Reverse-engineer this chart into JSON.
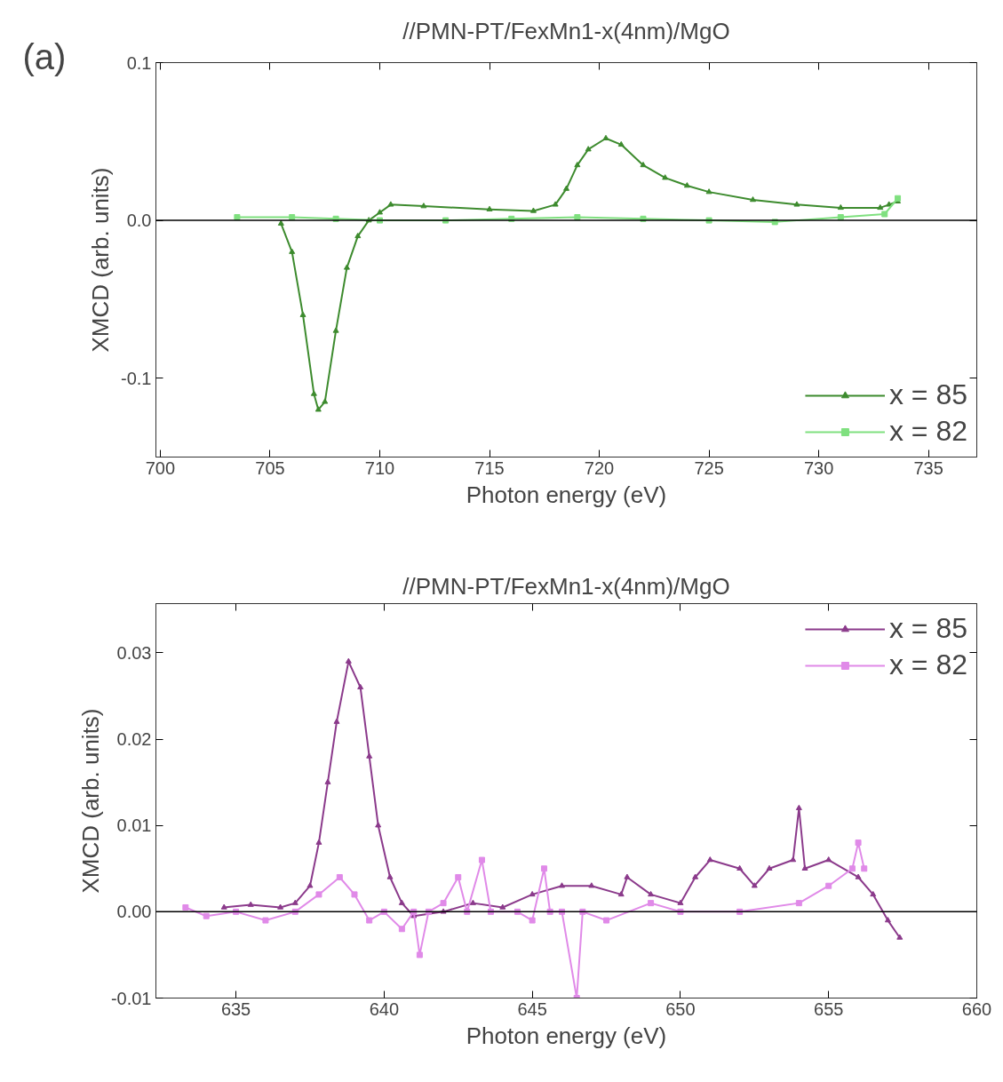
{
  "chart_data": [
    {
      "type": "line",
      "title": "//PMN-PT/FexMn1-x(4nm)/MgO",
      "xlabel": "Photon energy (eV)",
      "ylabel": "XMCD (arb. units)",
      "annotations": [
        "(a)"
      ],
      "xlim": [
        699.8,
        737.2
      ],
      "ylim": [
        -0.15,
        0.1
      ],
      "xticks": [
        700,
        705,
        710,
        715,
        720,
        725,
        730,
        735
      ],
      "yticks": [
        {
          "value": -0.1,
          "label": "-0.1"
        },
        {
          "value": 0,
          "label": "0.0"
        },
        0.1
      ],
      "grid": false,
      "legend": "bottom right",
      "line_style": "solid",
      "ref_lines": [
        {
          "axis": "y",
          "value": 0,
          "color": "#000000"
        }
      ],
      "series": [
        {
          "name": "x = 85",
          "color": "#3d8b2e",
          "marker": "triangle",
          "x": [
            705.5,
            706,
            706.5,
            707,
            707.2,
            707.5,
            708,
            708.5,
            709,
            709.5,
            710,
            710.5,
            712,
            715,
            717,
            718,
            718.5,
            719,
            719.5,
            720.3,
            721,
            722,
            723,
            724,
            725,
            727,
            729,
            731,
            732.8,
            733.2,
            733.6
          ],
          "values": [
            -0.002,
            -0.02,
            -0.06,
            -0.11,
            -0.12,
            -0.115,
            -0.07,
            -0.03,
            -0.01,
            0.0,
            0.005,
            0.01,
            0.009,
            0.007,
            0.006,
            0.01,
            0.02,
            0.035,
            0.045,
            0.052,
            0.048,
            0.035,
            0.027,
            0.022,
            0.018,
            0.013,
            0.01,
            0.008,
            0.008,
            0.01,
            0.012
          ]
        },
        {
          "name": "x = 82",
          "color": "#7fe07f",
          "marker": "square",
          "x": [
            703.5,
            706,
            708,
            710,
            713,
            716,
            719,
            722,
            725,
            728,
            731,
            733,
            733.6
          ],
          "values": [
            0.002,
            0.002,
            0.001,
            0.0,
            0.0,
            0.001,
            0.002,
            0.001,
            0.0,
            -0.001,
            0.002,
            0.004,
            0.014
          ]
        }
      ]
    },
    {
      "type": "line",
      "title": "//PMN-PT/FexMn1-x(4nm)/MgO",
      "xlabel": "Photon energy (eV)",
      "ylabel": "XMCD (arb. units)",
      "xlim": [
        632.3,
        660
      ],
      "ylim": [
        -0.01,
        0.0357
      ],
      "xticks": [
        635,
        640,
        645,
        650,
        655,
        660
      ],
      "yticks": [
        {
          "value": -0.01,
          "label": "-0.01"
        },
        {
          "value": 0,
          "label": "0.00"
        },
        0.01,
        0.02,
        0.03
      ],
      "grid": false,
      "legend": "top right",
      "line_style": "solid",
      "ref_lines": [
        {
          "axis": "y",
          "value": 0,
          "color": "#000000"
        }
      ],
      "series": [
        {
          "name": "x = 85",
          "color": "#8b3a8b",
          "marker": "triangle",
          "x": [
            634.6,
            635.5,
            636.5,
            637,
            637.5,
            637.8,
            638.1,
            638.4,
            638.8,
            639.2,
            639.5,
            639.8,
            640.2,
            640.6,
            641,
            642,
            643,
            644,
            645,
            646,
            647,
            648,
            648.2,
            649,
            650,
            650.5,
            651,
            652,
            652.5,
            653,
            653.8,
            654,
            654.2,
            655,
            656,
            656.5,
            657,
            657.4
          ],
          "values": [
            0.0005,
            0.0008,
            0.0005,
            0.001,
            0.003,
            0.008,
            0.015,
            0.022,
            0.029,
            0.026,
            0.018,
            0.01,
            0.004,
            0.001,
            -0.0005,
            0.0,
            0.001,
            0.0005,
            0.002,
            0.003,
            0.003,
            0.002,
            0.004,
            0.002,
            0.001,
            0.004,
            0.006,
            0.005,
            0.003,
            0.005,
            0.006,
            0.012,
            0.005,
            0.006,
            0.004,
            0.002,
            -0.001,
            -0.003
          ]
        },
        {
          "name": "x = 82",
          "color": "#e08ae8",
          "marker": "square",
          "x": [
            633.3,
            634,
            635,
            636,
            637,
            637.8,
            638.5,
            639,
            639.5,
            640,
            640.6,
            641,
            641.2,
            641.5,
            642,
            642.5,
            642.8,
            643.3,
            643.6,
            644.5,
            645,
            645.4,
            645.6,
            646,
            646.5,
            646.7,
            647.5,
            649,
            650,
            652,
            654,
            655,
            655.8,
            656,
            656.2
          ],
          "values": [
            0.0005,
            -0.0005,
            0.0,
            -0.001,
            0.0,
            0.002,
            0.004,
            0.002,
            -0.001,
            0.0,
            -0.002,
            0.0,
            -0.005,
            0.0,
            0.001,
            0.004,
            0.0,
            0.006,
            0.0,
            0.0,
            -0.001,
            0.005,
            0.0,
            0.0,
            -0.01,
            0.0,
            -0.001,
            0.001,
            0.0,
            0.0,
            0.001,
            0.003,
            0.005,
            0.008,
            0.005
          ]
        }
      ]
    }
  ]
}
